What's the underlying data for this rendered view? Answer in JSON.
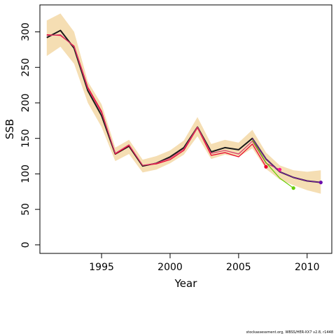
{
  "chart_data": {
    "type": "line",
    "xlabel": "Year",
    "ylabel": "SSB",
    "xlim": [
      1990.5,
      2011.8
    ],
    "ylim": [
      -12,
      338
    ],
    "x_ticks": [
      1995,
      2000,
      2005,
      2010
    ],
    "y_ticks": [
      0,
      50,
      100,
      150,
      200,
      250,
      300
    ],
    "grid": false,
    "legend": "none",
    "band": {
      "color": "#f5deb3",
      "x": [
        1991,
        1992,
        1993,
        1994,
        1995,
        1996,
        1997,
        1998,
        1999,
        2000,
        2001,
        2002,
        2003,
        2004,
        2005,
        2006,
        2007,
        2008,
        2009,
        2010,
        2011
      ],
      "lower": [
        266,
        279,
        255,
        200,
        166,
        118,
        128,
        102,
        106,
        115,
        127,
        153,
        121,
        127,
        124,
        136,
        107,
        92,
        84,
        77,
        72
      ],
      "upper": [
        316,
        326,
        300,
        230,
        198,
        137,
        148,
        120,
        125,
        133,
        147,
        180,
        142,
        148,
        144,
        162,
        130,
        112,
        105,
        103,
        105
      ]
    },
    "series": [
      {
        "color": "#1a1a1a",
        "width": 2,
        "x": [
          1991,
          1992,
          1993,
          1994,
          1995,
          1996,
          1997,
          1998,
          1999,
          2000,
          2001,
          2002,
          2003,
          2004,
          2005,
          2006,
          2007,
          2008,
          2009,
          2010,
          2011
        ],
        "values": [
          292,
          302,
          277,
          217,
          182,
          128,
          139,
          111,
          115,
          124,
          137,
          166,
          131,
          137,
          134,
          150,
          121,
          103,
          95,
          90,
          88
        ]
      },
      {
        "color": "#e8002d",
        "width": 1.2,
        "x": [
          1991,
          1992,
          1993,
          1994,
          1995,
          1996,
          1997,
          1998,
          1999,
          2000,
          2001,
          2002,
          2003,
          2004,
          2005,
          2006,
          2007
        ],
        "values": [
          296,
          295,
          280,
          222,
          188,
          128,
          140,
          112,
          114,
          120,
          133,
          165,
          126,
          130,
          124,
          142,
          110
        ]
      },
      {
        "color": "#d63a6e",
        "width": 1.2,
        "x": [
          1991,
          1992,
          1993,
          1994,
          1995,
          1996,
          1997,
          1998,
          1999,
          2000,
          2001,
          2002,
          2003,
          2004,
          2005,
          2006,
          2007,
          2008
        ],
        "values": [
          295,
          296,
          279,
          220,
          186,
          129,
          141,
          112,
          115,
          122,
          135,
          166,
          129,
          133,
          128,
          146,
          115,
          106
        ]
      },
      {
        "color": "#66cc00",
        "width": 1.2,
        "x": [
          2006,
          2007,
          2008,
          2009
        ],
        "values": [
          148,
          116,
          94,
          80
        ]
      },
      {
        "color": "#7a1fa2",
        "width": 1.2,
        "x": [
          2006,
          2007,
          2008,
          2009,
          2010,
          2011
        ],
        "values": [
          150,
          121,
          103,
          95,
          90,
          88
        ]
      }
    ],
    "endpoints": [
      {
        "x": 2007,
        "y": 110,
        "color": "#e8002d"
      },
      {
        "x": 2008,
        "y": 106,
        "color": "#ff1493"
      },
      {
        "x": 2009,
        "y": 80,
        "color": "#66cc00"
      },
      {
        "x": 2011,
        "y": 88,
        "color": "#6a0dad"
      }
    ]
  },
  "footer": {
    "credit": "stockassessment.org, WBSS/HER-XX7 v2.8, r1448"
  }
}
